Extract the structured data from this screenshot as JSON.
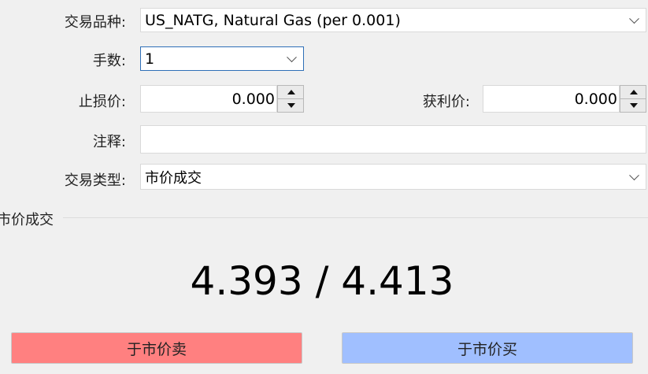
{
  "form": {
    "symbol_label": "交易品种:",
    "symbol_value": "US_NATG, Natural Gas (per 0.001)",
    "volume_label": "手数:",
    "volume_value": "1",
    "sl_label": "止损价:",
    "sl_value": "0.000",
    "tp_label": "获利价:",
    "tp_value": "0.000",
    "comment_label": "注释:",
    "comment_value": "",
    "type_label": "交易类型:",
    "type_value": "市价成交"
  },
  "market": {
    "group_label": "市价成交",
    "price": "4.393 / 4.413"
  },
  "buttons": {
    "sell": "于市价卖",
    "buy": "于市价买",
    "sell_color": "#ff8080",
    "buy_color": "#a0bfff"
  }
}
